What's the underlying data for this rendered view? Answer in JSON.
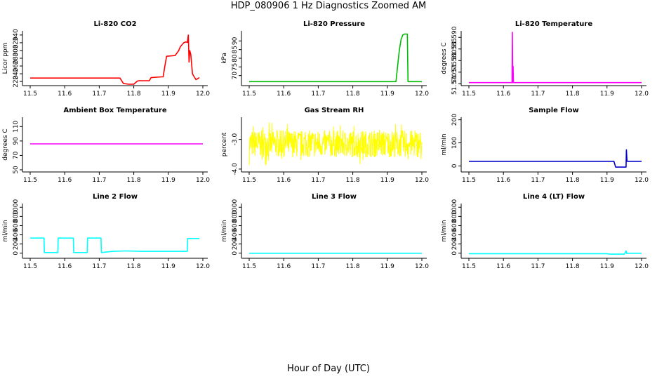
{
  "title": "HDP_080906  1 Hz Diagnostics Zoomed AM",
  "xlabel": "Hour of Day (UTC)",
  "chart_data": [
    {
      "type": "line",
      "title": "Li-820 CO2",
      "ylabel": "Licor ppm",
      "color": "#ff0000",
      "xlim": [
        11.48,
        12.01
      ],
      "ylim": [
        213,
        347
      ],
      "xticks": [
        "11.5",
        "11.6",
        "11.7",
        "11.8",
        "11.9",
        "12.0"
      ],
      "yticks": [
        "220",
        "240",
        "260",
        "280",
        "300",
        "320",
        "340"
      ],
      "series": [
        {
          "x": [
            11.5,
            11.76,
            11.77,
            11.785,
            11.8,
            11.81,
            11.815,
            11.845,
            11.85,
            11.88,
            11.885,
            11.89,
            11.895,
            11.92,
            11.93,
            11.935,
            11.945,
            11.95,
            11.955,
            11.958,
            11.96,
            11.962,
            11.965,
            11.97,
            11.975,
            11.98,
            11.99
          ],
          "y": [
            229,
            229,
            215,
            213,
            213,
            221,
            222,
            222,
            230,
            232,
            232,
            260,
            285,
            287,
            300,
            310,
            320,
            322,
            321,
            340,
            270,
            300,
            290,
            240,
            232,
            225,
            230
          ]
        }
      ]
    },
    {
      "type": "line",
      "title": "Li-820 Pressure",
      "ylabel": "kPa",
      "color": "#00bb00",
      "xlim": [
        11.48,
        12.01
      ],
      "ylim": [
        65,
        95
      ],
      "xticks": [
        "11.5",
        "11.6",
        "11.7",
        "11.8",
        "11.9",
        "12.0"
      ],
      "yticks": [
        "70",
        "75",
        "80",
        "85",
        "90"
      ],
      "series": [
        {
          "x": [
            11.5,
            11.925,
            11.93,
            11.935,
            11.94,
            11.945,
            11.95,
            11.955,
            11.958,
            11.96,
            12.0
          ],
          "y": [
            66.5,
            66.5,
            76,
            85,
            91,
            93.5,
            94,
            94,
            94,
            66.5,
            66.5
          ]
        }
      ]
    },
    {
      "type": "line",
      "title": "Li-820 Temperature",
      "ylabel": "degrees C",
      "color": "#ff00ff",
      "xlim": [
        11.48,
        12.01
      ],
      "ylim": [
        51.5698,
        51.5922
      ],
      "xticks": [
        "11.5",
        "11.6",
        "11.7",
        "11.8",
        "11.9",
        "12.0"
      ],
      "yticks": [
        "51.570",
        "51.575",
        "51.580",
        "51.585",
        "51.590"
      ],
      "series": [
        {
          "x": [
            11.5,
            11.625,
            11.626,
            11.627,
            11.628,
            11.629,
            12.0
          ],
          "y": [
            51.5705,
            51.5705,
            51.5922,
            51.5705,
            51.5775,
            51.5705,
            51.5705
          ]
        }
      ]
    },
    {
      "type": "line",
      "title": "Ambient Box Temperature",
      "ylabel": "degrees C",
      "color": "#ff00ff",
      "xlim": [
        11.48,
        12.01
      ],
      "ylim": [
        49,
        121
      ],
      "xticks": [
        "11.5",
        "11.6",
        "11.7",
        "11.8",
        "11.9",
        "12.0"
      ],
      "yticks": [
        "50",
        "70",
        "90",
        "110"
      ],
      "series": [
        {
          "x": [
            11.5,
            12.0
          ],
          "y": [
            86,
            86
          ]
        }
      ]
    },
    {
      "type": "line",
      "title": "Gas Stream RH",
      "ylabel": "percent",
      "color": "#ffff00",
      "xlim": [
        11.48,
        12.01
      ],
      "ylim": [
        -4.05,
        -2.3
      ],
      "xticks": [
        "11.5",
        "11.6",
        "11.7",
        "11.8",
        "11.9",
        "12.0"
      ],
      "yticks": [
        "-4.0",
        "-3.0"
      ],
      "noise": {
        "mean": -3.15,
        "amplitude": 0.45
      }
    },
    {
      "type": "line",
      "title": "Sample Flow",
      "ylabel": "ml/min",
      "color": "#0000cc",
      "xlim": [
        11.48,
        12.01
      ],
      "ylim": [
        -20,
        205
      ],
      "xticks": [
        "11.5",
        "11.6",
        "11.7",
        "11.8",
        "11.9",
        "12.0"
      ],
      "yticks": [
        "0",
        "100",
        "200"
      ],
      "series": [
        {
          "x": [
            11.5,
            11.92,
            11.925,
            11.955,
            11.956,
            11.958,
            11.96,
            11.97,
            12.0
          ],
          "y": [
            20,
            20,
            -5,
            -5,
            70,
            20,
            20,
            20,
            20
          ]
        }
      ]
    },
    {
      "type": "line",
      "title": "Line 2 Flow",
      "ylabel": "ml/min",
      "color": "#00ffff",
      "xlim": [
        11.48,
        12.01
      ],
      "ylim": [
        -80,
        1050
      ],
      "xticks": [
        "11.5",
        "11.6",
        "11.7",
        "11.8",
        "11.9",
        "12.0"
      ],
      "yticks": [
        "0",
        "200",
        "400",
        "600",
        "800",
        "1000"
      ],
      "series": [
        {
          "x": [
            11.5,
            11.54,
            11.541,
            11.58,
            11.581,
            11.625,
            11.626,
            11.665,
            11.666,
            11.705,
            11.706,
            11.74,
            11.78,
            11.82,
            11.955,
            11.956,
            11.99
          ],
          "y": [
            330,
            330,
            15,
            15,
            330,
            330,
            15,
            15,
            330,
            330,
            15,
            40,
            50,
            40,
            40,
            320,
            320
          ]
        }
      ]
    },
    {
      "type": "line",
      "title": "Line 3 Flow",
      "ylabel": "ml/min",
      "color": "#00ffff",
      "xlim": [
        11.48,
        12.01
      ],
      "ylim": [
        -80,
        1050
      ],
      "xticks": [
        "11.5",
        "11.6",
        "11.7",
        "11.8",
        "11.9",
        "12.0"
      ],
      "yticks": [
        "0",
        "200",
        "400",
        "600",
        "800",
        "1000"
      ],
      "series": [
        {
          "x": [
            11.5,
            12.0
          ],
          "y": [
            0,
            0
          ]
        }
      ]
    },
    {
      "type": "line",
      "title": "Line 4 (LT) Flow",
      "ylabel": "ml/min",
      "color": "#00ffff",
      "xlim": [
        11.48,
        12.01
      ],
      "ylim": [
        -80,
        1050
      ],
      "xticks": [
        "11.5",
        "11.6",
        "11.7",
        "11.8",
        "11.9",
        "12.0"
      ],
      "yticks": [
        "0",
        "200",
        "400",
        "600",
        "800",
        "1000"
      ],
      "series": [
        {
          "x": [
            11.5,
            11.9,
            11.905,
            11.95,
            11.955,
            11.957,
            11.96,
            12.0
          ],
          "y": [
            -10,
            -10,
            -20,
            -20,
            50,
            -5,
            0,
            0
          ]
        }
      ]
    }
  ]
}
